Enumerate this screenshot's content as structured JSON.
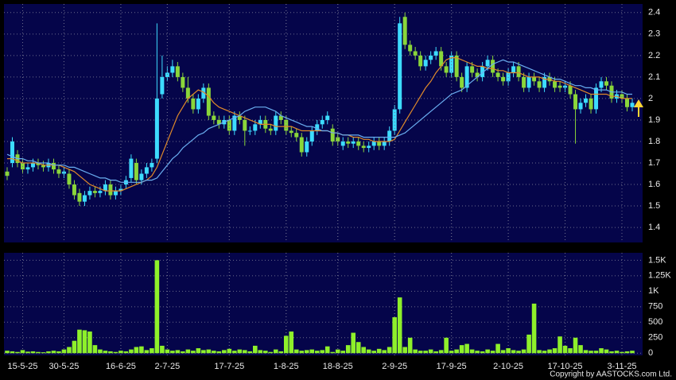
{
  "chart_data": [
    {
      "type": "candlestick",
      "x": [
        null,
        null,
        null,
        "15-5-25",
        null,
        null,
        null,
        null,
        null,
        null,
        null,
        "30-5-25",
        null,
        null,
        null,
        null,
        null,
        null,
        null,
        null,
        null,
        null,
        "16-6-25",
        null,
        null,
        null,
        null,
        null,
        null,
        null,
        null,
        "2-7-25",
        null,
        null,
        null,
        null,
        null,
        null,
        null,
        null,
        null,
        null,
        null,
        "17-7-25",
        null,
        null,
        null,
        null,
        null,
        null,
        null,
        null,
        null,
        null,
        "1-8-25",
        null,
        null,
        null,
        null,
        null,
        null,
        null,
        null,
        null,
        "18-8-25",
        null,
        null,
        null,
        null,
        null,
        null,
        null,
        null,
        null,
        null,
        "2-9-25",
        null,
        null,
        null,
        null,
        null,
        null,
        null,
        null,
        null,
        null,
        "17-9-25",
        null,
        null,
        null,
        null,
        null,
        null,
        null,
        null,
        null,
        null,
        "2-10-25",
        null,
        null,
        null,
        null,
        null,
        null,
        null,
        null,
        null,
        null,
        "17-10-25",
        null,
        null,
        null,
        null,
        null,
        null,
        null,
        null,
        null,
        null,
        "3-11-25",
        null,
        null
      ],
      "open": [
        1.66,
        1.7,
        1.74,
        1.7,
        1.67,
        1.68,
        1.7,
        1.69,
        1.68,
        1.7,
        1.67,
        1.65,
        1.65,
        1.6,
        1.56,
        1.52,
        1.55,
        1.57,
        1.56,
        1.57,
        1.6,
        1.55,
        1.57,
        1.6,
        1.63,
        1.7,
        1.62,
        1.65,
        1.68,
        1.72,
        2.02,
        2.1,
        2.12,
        2.15,
        2.1,
        2.05,
        2.0,
        1.95,
        2.0,
        2.05,
        1.92,
        1.9,
        1.88,
        1.9,
        1.85,
        1.92,
        1.9,
        1.85,
        1.85,
        1.88,
        1.9,
        1.86,
        1.85,
        1.92,
        1.9,
        1.85,
        1.84,
        1.82,
        1.75,
        1.8,
        1.85,
        1.88,
        1.9,
        1.86,
        1.82,
        1.78,
        1.8,
        1.79,
        1.8,
        1.78,
        1.77,
        1.78,
        1.8,
        1.78,
        1.8,
        1.85,
        1.95,
        2.38,
        2.25,
        2.22,
        2.2,
        2.15,
        2.18,
        2.2,
        2.22,
        2.15,
        2.12,
        2.2,
        2.1,
        2.05,
        2.15,
        2.12,
        2.1,
        2.15,
        2.18,
        2.12,
        2.1,
        2.08,
        2.12,
        2.15,
        2.1,
        2.05,
        2.1,
        2.08,
        2.05,
        2.1,
        2.08,
        2.06,
        2.05,
        2.06,
        2.02,
        1.95,
        1.98,
        2.0,
        1.95,
        2.05,
        2.08,
        2.06,
        2.0,
        2.02,
        2.0,
        1.96
      ],
      "high": [
        1.68,
        1.82,
        1.76,
        1.72,
        1.7,
        1.72,
        1.72,
        1.71,
        1.72,
        1.72,
        1.69,
        1.68,
        1.67,
        1.62,
        1.58,
        1.57,
        1.59,
        1.59,
        1.59,
        1.62,
        1.62,
        1.59,
        1.6,
        1.64,
        1.74,
        1.72,
        1.67,
        1.7,
        1.72,
        2.35,
        2.2,
        2.15,
        2.18,
        2.17,
        2.12,
        2.1,
        2.02,
        2.02,
        2.07,
        2.07,
        1.94,
        1.92,
        1.92,
        1.92,
        1.94,
        1.94,
        1.92,
        1.87,
        1.9,
        1.92,
        1.92,
        1.88,
        1.94,
        1.94,
        1.92,
        1.87,
        1.86,
        1.84,
        1.82,
        1.87,
        1.9,
        1.92,
        1.94,
        1.88,
        1.84,
        1.82,
        1.82,
        1.82,
        1.82,
        1.8,
        1.8,
        1.82,
        1.82,
        1.82,
        1.87,
        1.97,
        2.38,
        2.4,
        2.27,
        2.24,
        2.22,
        2.2,
        2.22,
        2.24,
        2.24,
        2.17,
        2.22,
        2.22,
        2.12,
        2.17,
        2.17,
        2.14,
        2.17,
        2.2,
        2.2,
        2.14,
        2.12,
        2.14,
        2.17,
        2.17,
        2.12,
        2.12,
        2.12,
        2.1,
        2.12,
        2.12,
        2.1,
        2.08,
        2.08,
        2.08,
        2.04,
        2.0,
        2.02,
        2.02,
        2.07,
        2.1,
        2.1,
        2.08,
        2.04,
        2.04,
        2.02,
        2.0
      ],
      "low": [
        1.62,
        1.68,
        1.68,
        1.65,
        1.65,
        1.66,
        1.67,
        1.66,
        1.66,
        1.65,
        1.63,
        1.63,
        1.58,
        1.53,
        1.5,
        1.5,
        1.53,
        1.54,
        1.54,
        1.55,
        1.53,
        1.53,
        1.55,
        1.58,
        1.61,
        1.6,
        1.6,
        1.63,
        1.66,
        1.7,
        2.0,
        2.08,
        2.1,
        2.08,
        2.03,
        1.98,
        1.93,
        1.93,
        1.98,
        1.9,
        1.88,
        1.86,
        1.86,
        1.83,
        1.83,
        1.88,
        1.78,
        1.83,
        1.83,
        1.86,
        1.84,
        1.83,
        1.83,
        1.88,
        1.83,
        1.82,
        1.8,
        1.73,
        1.73,
        1.78,
        1.83,
        1.86,
        1.88,
        1.78,
        1.78,
        1.76,
        1.77,
        1.77,
        1.76,
        1.75,
        1.75,
        1.76,
        1.76,
        1.76,
        1.78,
        1.83,
        1.93,
        2.23,
        2.2,
        2.18,
        2.13,
        2.13,
        2.16,
        2.18,
        2.13,
        2.1,
        2.1,
        2.08,
        2.03,
        2.03,
        2.1,
        2.08,
        2.08,
        2.13,
        2.1,
        2.08,
        2.06,
        2.06,
        2.1,
        2.08,
        2.03,
        2.03,
        2.06,
        2.03,
        2.03,
        2.06,
        2.03,
        2.03,
        2.03,
        2.0,
        1.79,
        1.93,
        1.96,
        1.93,
        1.93,
        2.03,
        2.04,
        1.98,
        1.98,
        1.98,
        1.94,
        1.94
      ],
      "close": [
        1.64,
        1.8,
        1.7,
        1.67,
        1.68,
        1.7,
        1.69,
        1.68,
        1.7,
        1.67,
        1.65,
        1.66,
        1.6,
        1.55,
        1.52,
        1.55,
        1.57,
        1.56,
        1.57,
        1.6,
        1.55,
        1.57,
        1.58,
        1.62,
        1.72,
        1.62,
        1.65,
        1.68,
        1.7,
        2.0,
        2.1,
        2.12,
        2.15,
        2.1,
        2.05,
        2.0,
        1.95,
        2.0,
        2.05,
        1.92,
        1.9,
        1.88,
        1.9,
        1.85,
        1.92,
        1.9,
        1.85,
        1.85,
        1.88,
        1.9,
        1.86,
        1.85,
        1.92,
        1.9,
        1.85,
        1.84,
        1.82,
        1.75,
        1.8,
        1.85,
        1.88,
        1.9,
        1.92,
        1.8,
        1.8,
        1.8,
        1.79,
        1.8,
        1.78,
        1.77,
        1.78,
        1.8,
        1.78,
        1.8,
        1.85,
        1.95,
        2.35,
        2.25,
        2.22,
        2.2,
        2.15,
        2.18,
        2.2,
        2.22,
        2.15,
        2.12,
        2.2,
        2.1,
        2.05,
        2.15,
        2.12,
        2.1,
        2.15,
        2.18,
        2.12,
        2.1,
        2.08,
        2.12,
        2.15,
        2.1,
        2.05,
        2.1,
        2.08,
        2.05,
        2.1,
        2.08,
        2.05,
        2.05,
        2.06,
        2.02,
        1.95,
        1.98,
        2.0,
        1.95,
        2.05,
        2.08,
        2.06,
        2.0,
        2.02,
        2.0,
        1.96,
        1.98
      ],
      "up_color": "#3ddcff",
      "down_color": "#8ad63a",
      "series": [
        {
          "color": "#e08a2a",
          "values": [
            1.72,
            1.72,
            1.71,
            1.7,
            1.7,
            1.7,
            1.7,
            1.69,
            1.69,
            1.69,
            1.69,
            1.68,
            1.67,
            1.66,
            1.64,
            1.62,
            1.6,
            1.59,
            1.58,
            1.57,
            1.57,
            1.57,
            1.57,
            1.58,
            1.59,
            1.6,
            1.61,
            1.62,
            1.64,
            1.68,
            1.74,
            1.8,
            1.86,
            1.92,
            1.96,
            2.0,
            2.02,
            2.04,
            2.03,
            2.01,
            1.98,
            1.96,
            1.95,
            1.94,
            1.93,
            1.92,
            1.91,
            1.9,
            1.89,
            1.88,
            1.88,
            1.88,
            1.87,
            1.87,
            1.87,
            1.87,
            1.86,
            1.85,
            1.85,
            1.85,
            1.85,
            1.85,
            1.85,
            1.84,
            1.84,
            1.83,
            1.83,
            1.82,
            1.82,
            1.81,
            1.81,
            1.8,
            1.8,
            1.8,
            1.8,
            1.81,
            1.85,
            1.89,
            1.93,
            1.97,
            2.01,
            2.05,
            2.08,
            2.12,
            2.15,
            2.18,
            2.19,
            2.19,
            2.18,
            2.17,
            2.16,
            2.15,
            2.15,
            2.14,
            2.14,
            2.13,
            2.13,
            2.12,
            2.12,
            2.12,
            2.11,
            2.1,
            2.1,
            2.1,
            2.09,
            2.09,
            2.08,
            2.08,
            2.07,
            2.06,
            2.05,
            2.04,
            2.03,
            2.02,
            2.02,
            2.02,
            2.02,
            2.01,
            2.01,
            2.0,
            2.0,
            2.0
          ]
        },
        {
          "color": "#6aaef0",
          "values": [
            1.74,
            1.73,
            1.72,
            1.72,
            1.71,
            1.71,
            1.7,
            1.7,
            1.7,
            1.69,
            1.69,
            1.69,
            1.68,
            1.68,
            1.67,
            1.66,
            1.65,
            1.64,
            1.63,
            1.63,
            1.62,
            1.62,
            1.61,
            1.61,
            1.61,
            1.61,
            1.61,
            1.62,
            1.62,
            1.63,
            1.66,
            1.69,
            1.72,
            1.74,
            1.77,
            1.79,
            1.81,
            1.83,
            1.84,
            1.86,
            1.87,
            1.88,
            1.89,
            1.9,
            1.91,
            1.92,
            1.94,
            1.95,
            1.96,
            1.96,
            1.96,
            1.95,
            1.94,
            1.92,
            1.91,
            1.9,
            1.89,
            1.88,
            1.87,
            1.87,
            1.86,
            1.85,
            1.85,
            1.84,
            1.84,
            1.83,
            1.83,
            1.83,
            1.83,
            1.82,
            1.82,
            1.82,
            1.82,
            1.82,
            1.82,
            1.82,
            1.83,
            1.84,
            1.86,
            1.88,
            1.9,
            1.92,
            1.94,
            1.96,
            1.98,
            2.0,
            2.02,
            2.03,
            2.04,
            2.06,
            2.08,
            2.1,
            2.12,
            2.14,
            2.16,
            2.17,
            2.18,
            2.17,
            2.17,
            2.16,
            2.15,
            2.14,
            2.13,
            2.12,
            2.11,
            2.1,
            2.09,
            2.09,
            2.08,
            2.07,
            2.06,
            2.06,
            2.05,
            2.05,
            2.04,
            2.04,
            2.04,
            2.03,
            2.03,
            2.03,
            2.02,
            2.02
          ]
        }
      ],
      "ylim": [
        1.33,
        2.44
      ],
      "yticks": [
        1.4,
        1.5,
        1.6,
        1.7,
        1.8,
        1.9,
        2,
        2.1,
        2.2,
        2.3,
        2.4
      ],
      "grid": true
    },
    {
      "type": "bar",
      "values": [
        40,
        30,
        20,
        50,
        25,
        30,
        20,
        15,
        30,
        40,
        30,
        60,
        100,
        200,
        380,
        370,
        350,
        130,
        60,
        40,
        30,
        20,
        40,
        30,
        60,
        100,
        110,
        50,
        80,
        1500,
        120,
        60,
        40,
        50,
        30,
        60,
        40,
        80,
        50,
        60,
        40,
        30,
        50,
        70,
        40,
        60,
        50,
        30,
        120,
        50,
        40,
        20,
        60,
        30,
        280,
        350,
        60,
        40,
        50,
        60,
        40,
        50,
        110,
        20,
        60,
        40,
        130,
        330,
        180,
        100,
        60,
        40,
        70,
        50,
        100,
        580,
        900,
        100,
        250,
        60,
        40,
        40,
        60,
        30,
        50,
        250,
        40,
        60,
        130,
        150,
        60,
        40,
        30,
        60,
        40,
        150,
        50,
        80,
        50,
        40,
        60,
        300,
        800,
        50,
        40,
        60,
        80,
        270,
        120,
        80,
        250,
        130,
        50,
        40,
        40,
        80,
        60,
        30,
        40,
        20,
        30,
        40
      ],
      "color": "#8ef02a",
      "ylim": [
        -35,
        1620
      ],
      "yticks": [
        0,
        250,
        500,
        750,
        {
          "value": 1000,
          "label": "1K"
        },
        {
          "value": 1250,
          "label": "1.25K"
        },
        {
          "value": 1500,
          "label": "1.5K"
        }
      ],
      "grid": true
    }
  ],
  "copyright": "Copyright by AASTOCKS.com Ltd."
}
